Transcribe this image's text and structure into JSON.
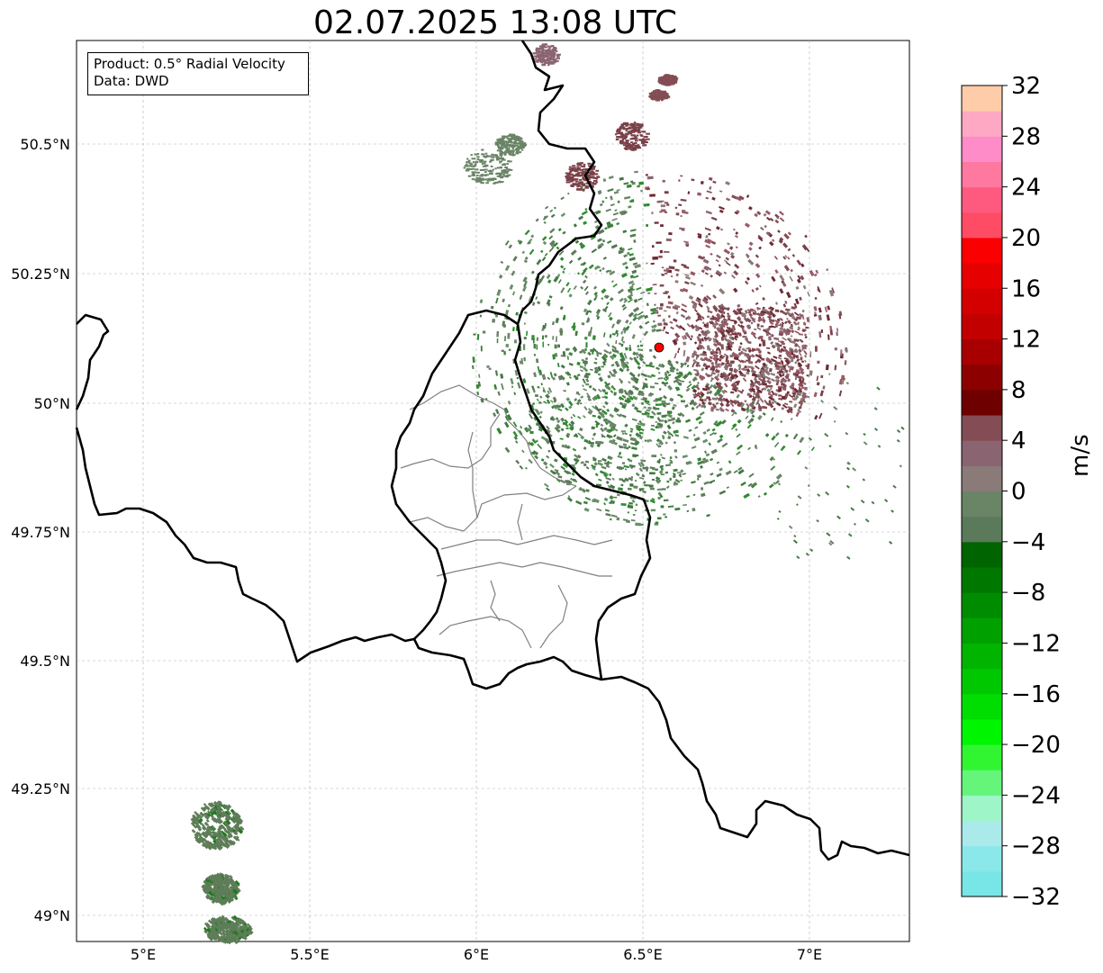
{
  "title": "02.07.2025 13:08 UTC",
  "info": {
    "product": "Product: 0.5° Radial Velocity",
    "data": "Data: DWD"
  },
  "axes": {
    "x_ticks": [
      "5°E",
      "5.5°E",
      "6°E",
      "6.5°E",
      "7°E"
    ],
    "y_ticks": [
      "50.5°N",
      "50.25°N",
      "50°N",
      "49.75°N",
      "49.5°N",
      "49.25°N",
      "49°N"
    ],
    "lon_range": [
      4.8,
      7.3
    ],
    "lat_range": [
      48.95,
      50.7
    ]
  },
  "radar_site": {
    "lon": 6.55,
    "lat": 50.11,
    "color": "#ff0000"
  },
  "colorbar": {
    "unit": "m/s",
    "min": -32,
    "max": 32,
    "tick_labels": [
      "32",
      "28",
      "24",
      "20",
      "16",
      "12",
      "8",
      "4",
      "0",
      "−4",
      "−8",
      "−12",
      "−16",
      "−20",
      "−24",
      "−28",
      "−32"
    ],
    "colors": [
      "#78e6e6",
      "#8ae8ea",
      "#aaeaea",
      "#9ef5c8",
      "#64f57a",
      "#32f532",
      "#00f500",
      "#00dd00",
      "#00c800",
      "#00b400",
      "#00a000",
      "#008c00",
      "#007800",
      "#006400",
      "#5a7a5a",
      "#6a8466",
      "#8a7a78",
      "#8a6470",
      "#844c54",
      "#6e0000",
      "#8c0000",
      "#a80000",
      "#c20000",
      "#d40000",
      "#e60000",
      "#fa0000",
      "#fe4c64",
      "#fe5a80",
      "#fe78a0",
      "#fe8cc8",
      "#fea8c4",
      "#fecca8"
    ]
  }
}
